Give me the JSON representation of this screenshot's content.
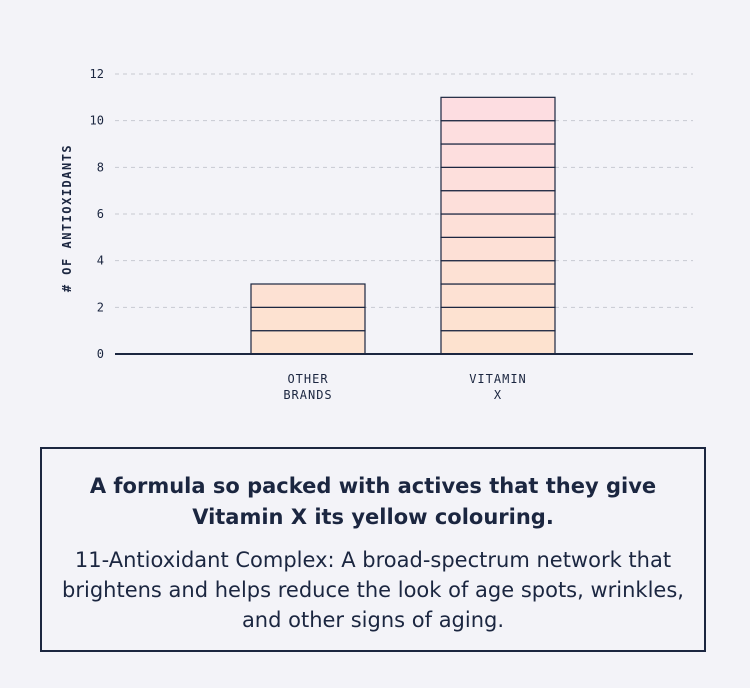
{
  "chart_data": {
    "type": "bar",
    "categories": [
      [
        "OTHER",
        "BRANDS"
      ],
      [
        "VITAMIN",
        "X"
      ]
    ],
    "values": [
      3,
      11
    ],
    "ylabel": "# OF ANTIOXIDANTS",
    "ylim": [
      0,
      12
    ],
    "yticks": [
      0,
      2,
      4,
      6,
      8,
      10,
      12
    ],
    "grid": true,
    "bar_style": "stacked-unit-segments",
    "colors": {
      "segment_bottom": "#fde2cf",
      "segment_top": "#fddde3",
      "outline": "#1b2640",
      "grid": "#c7c9d1",
      "axis": "#1b2640"
    }
  },
  "card": {
    "title": "A formula so packed with actives that they give Vitamin X its yellow colouring.",
    "body": "11-Antioxidant Complex: A broad-spectrum network that brightens and helps reduce the look of age spots, wrinkles, and other signs of aging."
  }
}
